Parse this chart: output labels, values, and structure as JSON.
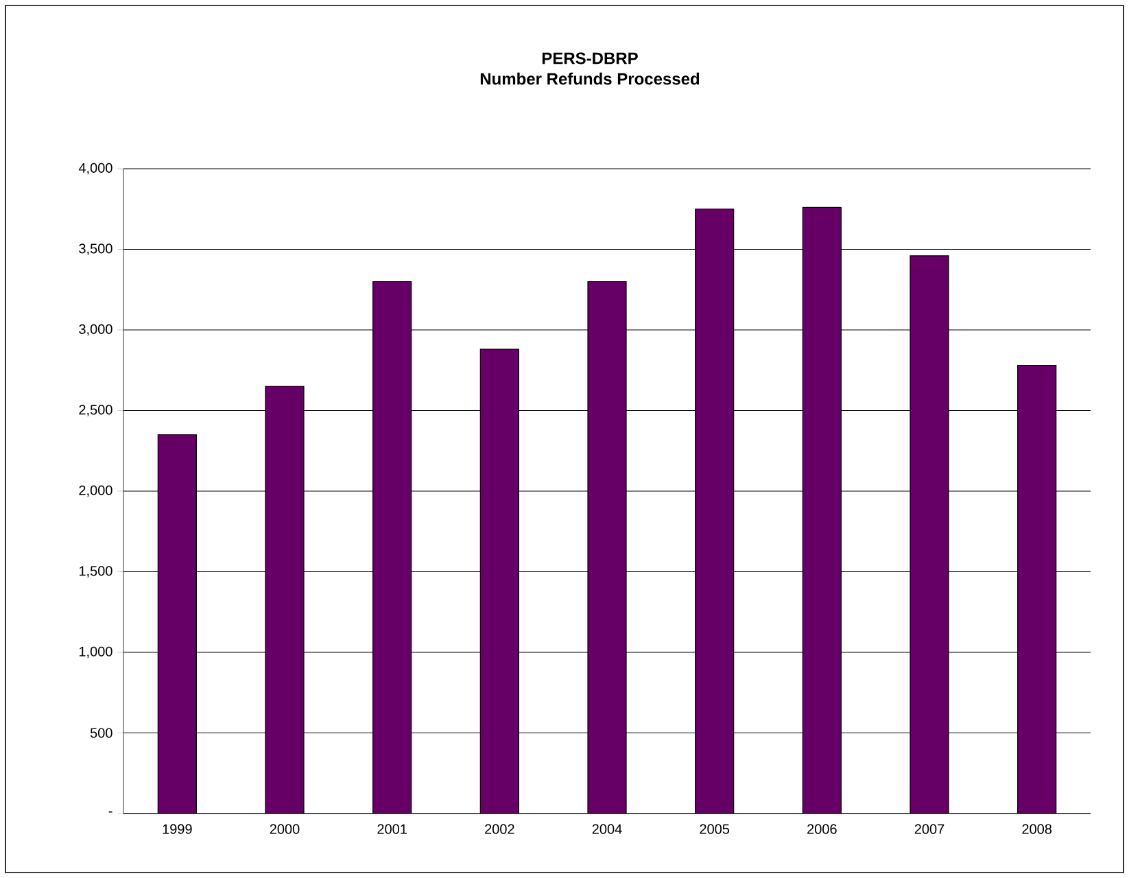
{
  "chart_data": {
    "type": "bar",
    "title": "PERS-DBRP\nNumber Refunds Processed",
    "categories": [
      "1999",
      "2000",
      "2001",
      "2002",
      "2004",
      "2005",
      "2006",
      "2007",
      "2008"
    ],
    "values": [
      2350,
      2650,
      3300,
      2880,
      3300,
      3750,
      3760,
      3460,
      2780
    ],
    "color": "#660066",
    "ylim": [
      0,
      4000
    ],
    "yticks": [
      {
        "value": 0,
        "label": "-"
      },
      500,
      {
        "value": 1000,
        "label": "1,000"
      },
      {
        "value": 1500,
        "label": "1,500"
      },
      {
        "value": 2000,
        "label": "2,000"
      },
      {
        "value": 2500,
        "label": "2,500"
      },
      {
        "value": 3000,
        "label": "3,000"
      },
      {
        "value": 3500,
        "label": "3,500"
      },
      {
        "value": 4000,
        "label": "4,000"
      }
    ],
    "grid": "y"
  }
}
